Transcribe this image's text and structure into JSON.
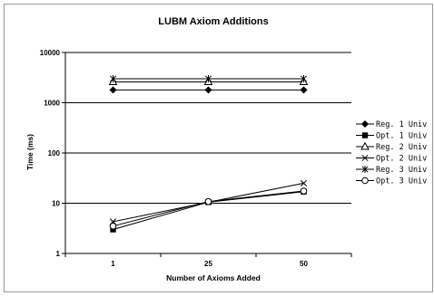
{
  "chart_data": {
    "type": "line",
    "title": "LUBM Axiom Additions",
    "xlabel": "Number of Axioms Added",
    "ylabel": "Time (ms)",
    "categories": [
      "1",
      "25",
      "50"
    ],
    "y_scale": "log",
    "ylim": [
      1,
      10000
    ],
    "y_ticks": [
      "1",
      "10",
      "100",
      "1000",
      "10000"
    ],
    "grid": "horizontal",
    "legend_position": "right",
    "series": [
      {
        "name": "Reg. 1 Univ",
        "marker": "diamond-filled",
        "values": [
          1800,
          1800,
          1800
        ]
      },
      {
        "name": "Opt. 1 Univ",
        "marker": "square-filled",
        "values": [
          3,
          10.5,
          17
        ]
      },
      {
        "name": "Reg. 2 Univ",
        "marker": "triangle-open",
        "values": [
          2600,
          2600,
          2600
        ]
      },
      {
        "name": "Opt. 2 Univ",
        "marker": "x",
        "values": [
          4.3,
          10.5,
          25
        ]
      },
      {
        "name": "Reg. 3 Univ",
        "marker": "star",
        "values": [
          3000,
          3000,
          3000
        ]
      },
      {
        "name": "Opt. 3 Univ",
        "marker": "circle-open",
        "values": [
          3.5,
          10.8,
          17.5
        ]
      }
    ]
  }
}
